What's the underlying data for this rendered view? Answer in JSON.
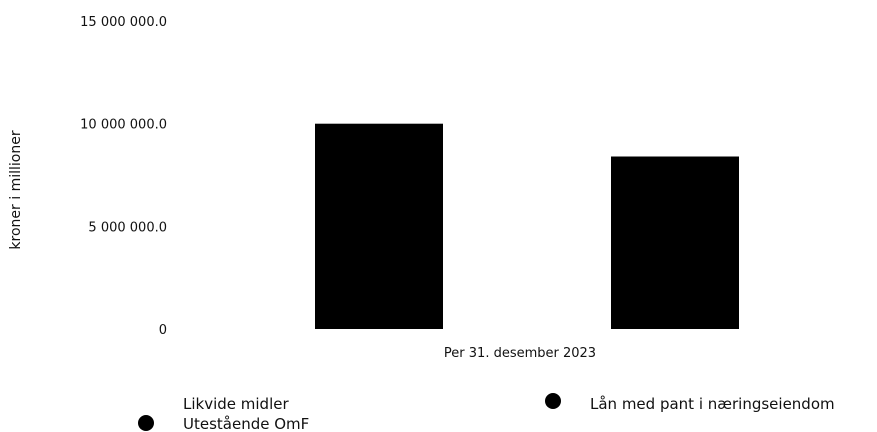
{
  "chart_data": {
    "type": "bar",
    "categories": [
      "Per 31. desember 2023"
    ],
    "series": [
      {
        "name": "Likvide midler",
        "values": [
          0
        ],
        "color": "#000000"
      },
      {
        "name": "Lån med pant i næringseiendom",
        "values": [
          10000000
        ],
        "color": "#000000"
      },
      {
        "name": "Utestående OmF",
        "values": [
          8400000
        ],
        "color": "#000000"
      }
    ],
    "xlabel": "Per 31. desember 2023",
    "ylabel": "kroner i millioner",
    "ylim": [
      0,
      15000000
    ],
    "yticks": [
      {
        "value": 0,
        "label": "0"
      },
      {
        "value": 5000000,
        "label": "5 000 000.0"
      },
      {
        "value": 10000000,
        "label": "10 000 000.0"
      },
      {
        "value": 15000000,
        "label": "15 000 000.0"
      }
    ],
    "grid": false,
    "legend_position": "bottom"
  }
}
